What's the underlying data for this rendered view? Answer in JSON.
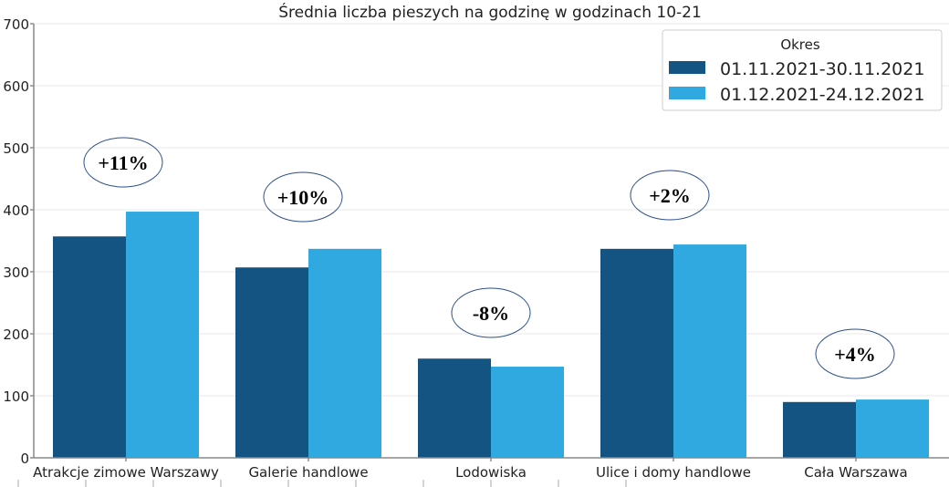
{
  "chart_data": {
    "type": "bar",
    "title": "Średnia liczba pieszych na godzinę w godzinach 10-21",
    "xlabel": "",
    "ylabel": "",
    "ylim": [
      0,
      700
    ],
    "yticks": [
      "0",
      "100",
      "200",
      "300",
      "400",
      "500",
      "600",
      "700"
    ],
    "grid": true,
    "categories": [
      "Atrakcje zimowe Warszawy",
      "Galerie handlowe",
      "Lodowiska",
      "Ulice i domy handlowe",
      "Cała Warszawa"
    ],
    "series": [
      {
        "name": "01.11.2021-30.11.2021",
        "color": "#135482",
        "values": [
          357,
          307,
          160,
          337,
          90
        ]
      },
      {
        "name": "01.12.2021-24.12.2021",
        "color": "#2fa9df",
        "values": [
          397,
          337,
          147,
          344,
          94
        ]
      }
    ],
    "legend": {
      "title": "Okres",
      "placement": "top-right"
    },
    "annotations": [
      "+11%",
      "+10%",
      "-8%",
      "+2%",
      "+4%"
    ]
  }
}
